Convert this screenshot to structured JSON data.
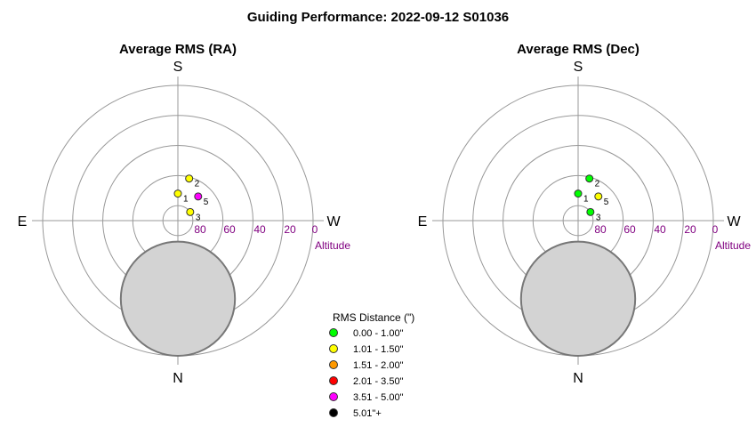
{
  "title": "Guiding Performance: 2022-09-12 S01036",
  "chart_data": [
    {
      "type": "scatter",
      "title": "Average RMS (RA)",
      "projection": "polar-altaz",
      "directions": {
        "top": "S",
        "bottom": "N",
        "left": "E",
        "right": "W"
      },
      "altitude_ticks": [
        "80",
        "60",
        "40",
        "20",
        "0"
      ],
      "altitude_label": "Altitude",
      "rlim_altitude": [
        90,
        0
      ],
      "obstruction": "grey disc below the zenith",
      "points": [
        {
          "label": "1",
          "azimuth": 180,
          "altitude": 72,
          "color": "#ffff00"
        },
        {
          "label": "2",
          "azimuth": 165,
          "altitude": 61,
          "color": "#ffff00"
        },
        {
          "label": "5",
          "azimuth": 140,
          "altitude": 69,
          "color": "#ff00ff"
        },
        {
          "label": "3",
          "azimuth": 125,
          "altitude": 80,
          "color": "#ffff00"
        }
      ]
    },
    {
      "type": "scatter",
      "title": "Average RMS (Dec)",
      "projection": "polar-altaz",
      "directions": {
        "top": "S",
        "bottom": "N",
        "left": "E",
        "right": "W"
      },
      "altitude_ticks": [
        "80",
        "60",
        "40",
        "20",
        "0"
      ],
      "altitude_label": "Altitude",
      "rlim_altitude": [
        90,
        0
      ],
      "obstruction": "grey disc below the zenith",
      "points": [
        {
          "label": "1",
          "azimuth": 180,
          "altitude": 72,
          "color": "#00ff00"
        },
        {
          "label": "2",
          "azimuth": 165,
          "altitude": 61,
          "color": "#00ff00"
        },
        {
          "label": "5",
          "azimuth": 140,
          "altitude": 69,
          "color": "#ffff00"
        },
        {
          "label": "3",
          "azimuth": 125,
          "altitude": 80,
          "color": "#00ff00"
        }
      ]
    }
  ],
  "legend": {
    "title": "RMS Distance (\")",
    "placement": "bottom-center",
    "items": [
      {
        "label": "0.00 - 1.00\"",
        "color": "#00ff00"
      },
      {
        "label": "1.01 - 1.50\"",
        "color": "#ffff00"
      },
      {
        "label": "1.51 - 2.00\"",
        "color": "#ff9900"
      },
      {
        "label": "2.01 - 3.50\"",
        "color": "#ff0000"
      },
      {
        "label": "3.51 - 5.00\"",
        "color": "#ff00ff"
      },
      {
        "label": "5.01\"+",
        "color": "#000000"
      }
    ]
  }
}
